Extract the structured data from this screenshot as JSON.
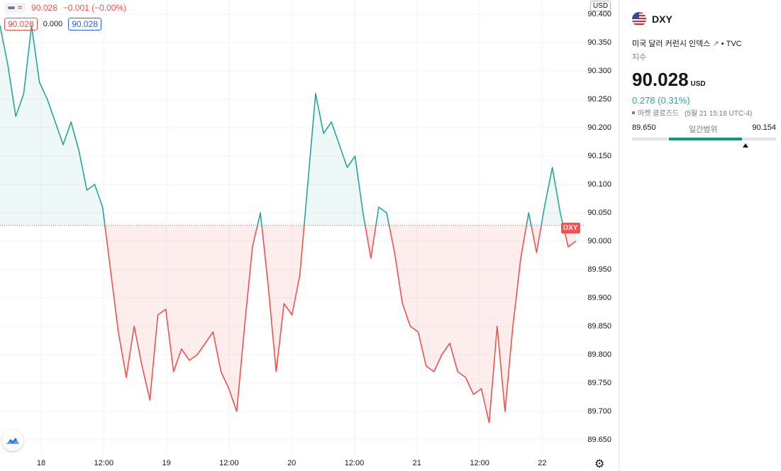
{
  "legend": {
    "price": "90.028",
    "change": "−0.001 (−0.00%)",
    "box_left": "90.028",
    "mid_value": "0.000",
    "box_right": "90.028"
  },
  "price_axis": {
    "currency": "USD",
    "labels": [
      "90.400",
      "90.350",
      "90.300",
      "90.250",
      "90.200",
      "90.150",
      "90.100",
      "90.050",
      "90.000",
      "89.950",
      "89.900",
      "89.850",
      "89.800",
      "89.750",
      "89.700",
      "89.650"
    ],
    "flag_label": "DXY"
  },
  "time_axis": {
    "labels": [
      "18",
      "12:00",
      "19",
      "12:00",
      "20",
      "12:00",
      "21",
      "12:00",
      "22"
    ]
  },
  "icons": {
    "settings": "gear-icon",
    "logo": "tradingview-logo-icon",
    "flag": "us-flag-icon",
    "external": "external-link-icon"
  },
  "colors": {
    "up": "#26a69a",
    "down": "#ef5350",
    "accent": "#2962ff"
  },
  "chart_data": {
    "type": "area",
    "baseline": 90.028,
    "ylim": [
      89.625,
      90.425
    ],
    "x_labels": [
      "18",
      "12:00",
      "19",
      "12:00",
      "20",
      "12:00",
      "21",
      "12:00",
      "22"
    ],
    "series": [
      {
        "values": [
          90.38,
          90.31,
          90.22,
          90.26,
          90.38,
          90.28,
          90.25,
          90.21,
          90.17,
          90.21,
          90.16,
          90.09,
          90.1,
          90.06,
          89.95,
          89.84,
          89.76,
          89.85,
          89.78,
          89.72,
          89.87,
          89.88,
          89.77,
          89.81,
          89.79,
          89.8,
          89.82,
          89.84,
          89.77,
          89.74,
          89.7,
          89.85,
          89.99,
          90.05,
          89.92,
          89.77,
          89.89,
          89.87,
          89.94,
          90.1,
          90.26,
          90.19,
          90.21,
          90.17,
          90.13,
          90.15,
          90.05,
          89.97,
          90.06,
          90.05,
          89.98,
          89.89,
          89.85,
          89.84,
          89.78,
          89.77,
          89.8,
          89.82,
          89.77,
          89.76,
          89.73,
          89.74,
          89.68,
          89.85,
          89.7,
          89.85,
          89.97,
          90.05,
          89.98,
          90.06,
          90.13,
          90.05,
          89.99,
          90.0
        ]
      }
    ]
  },
  "sidebar": {
    "symbol": "DXY",
    "description": "미국 달러 커런시 인덱스",
    "exchange": "• TVC",
    "type_label": "지수",
    "price": "90.028",
    "currency": "USD",
    "change": "0.278 (0.31%)",
    "market_status": "마켓 클로즈드",
    "timestamp": "(5월 21 15:18 UTC-4)",
    "range_low": "89.650",
    "range_label": "일간범위",
    "range_high": "90.154",
    "range_position": 0.79
  }
}
